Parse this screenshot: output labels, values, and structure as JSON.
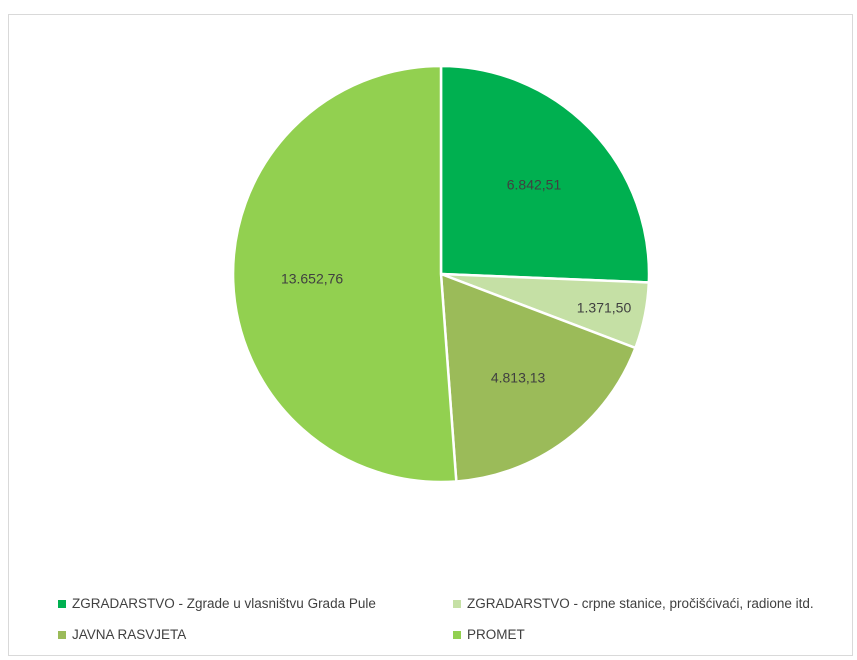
{
  "chart_data": {
    "type": "pie",
    "title": "",
    "categories": [
      "ZGRADARSTVO - Zgrade u vlasništvu Grada Pule",
      "ZGRADARSTVO - crpne stanice, pročišćivaći, radione itd.",
      "JAVNA RASVJETA",
      "PROMET"
    ],
    "values": [
      6842.51,
      1371.5,
      4813.13,
      13652.76
    ],
    "data_labels": [
      "6.842,51",
      "1.371,50",
      "4.813,13",
      "13.652,76"
    ],
    "colors": [
      "#00b050",
      "#c5e0a5",
      "#9bbb59",
      "#92d050"
    ],
    "legend_position": "bottom",
    "start_angle": "12 o'clock, clockwise"
  }
}
